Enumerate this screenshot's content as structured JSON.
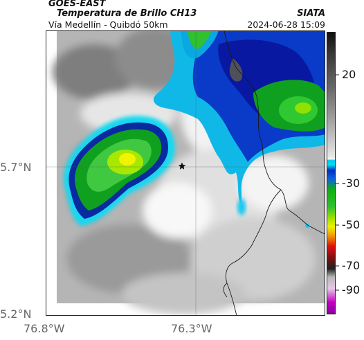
{
  "header": {
    "satellite": "GOES-EAST",
    "product": "Temperatura de Brillo CH13",
    "route": "Vía Medellín - Quibdó 50km",
    "agency": "SIATA",
    "datetime": "2024-06-28 15:09"
  },
  "map": {
    "lat_labels": [
      "5.7°N",
      "5.2°N"
    ],
    "lon_labels": [
      "76.8°W",
      "76.3°W"
    ],
    "marker_icon": "star-icon"
  },
  "colorbar": {
    "ticks": [
      "20",
      "-30",
      "-50",
      "-70",
      "-90"
    ],
    "colors": {
      "warm": "#2a2a2a",
      "mid_gray": "#d8d8d8",
      "cyan": "#00c8f0",
      "blue": "#0030c0",
      "green": "#10b010",
      "yellow": "#f0f000",
      "red": "#e01010",
      "magenta": "#c000c0"
    }
  }
}
